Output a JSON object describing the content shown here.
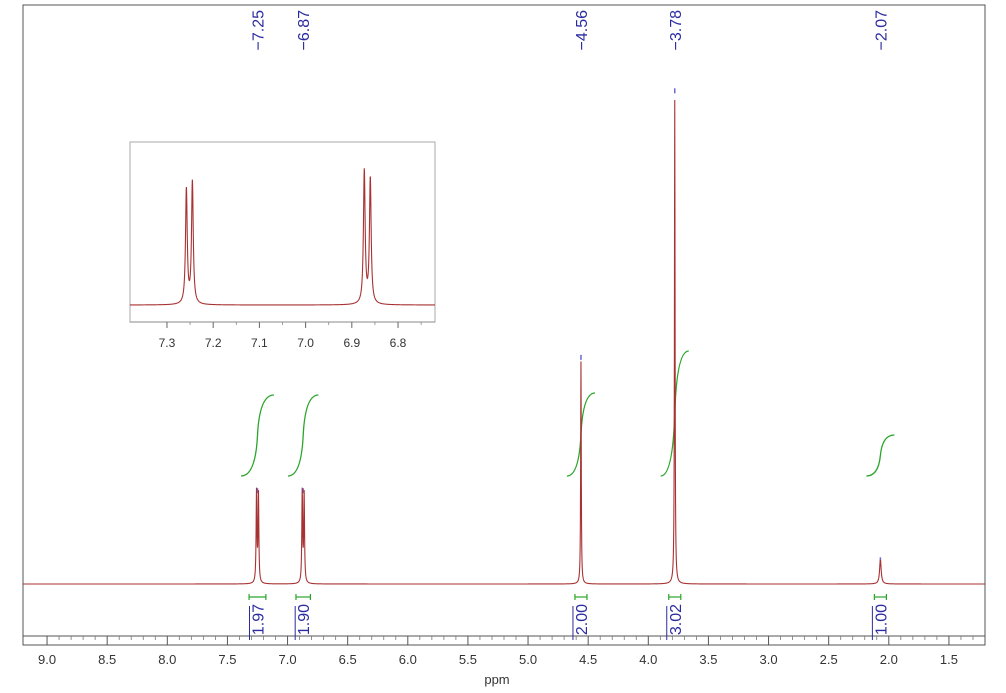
{
  "chart_data": {
    "type": "line",
    "xlabel": "ppm",
    "xlim": [
      9.2,
      1.2
    ],
    "x_reversed": true,
    "x_ticks": [
      "9.0",
      "8.5",
      "8.0",
      "7.5",
      "7.0",
      "6.5",
      "6.0",
      "5.5",
      "5.0",
      "4.5",
      "4.0",
      "3.5",
      "3.0",
      "2.5",
      "2.0",
      "1.5"
    ],
    "peak_labels": [
      "7.25",
      "6.87",
      "4.56",
      "3.78",
      "2.07"
    ],
    "peaks": [
      {
        "ppm": 7.25,
        "intensity": 0.19
      },
      {
        "ppm": 6.87,
        "intensity": 0.19
      },
      {
        "ppm": 4.56,
        "intensity": 0.46
      },
      {
        "ppm": 3.78,
        "intensity": 1.0
      },
      {
        "ppm": 2.07,
        "intensity": 0.05
      }
    ],
    "integrals": [
      {
        "ppm_from": 7.32,
        "ppm_to": 7.18,
        "value": "1.97"
      },
      {
        "ppm_from": 6.93,
        "ppm_to": 6.81,
        "value": "1.90"
      },
      {
        "ppm_from": 4.61,
        "ppm_to": 4.51,
        "value": "2.00"
      },
      {
        "ppm_from": 3.83,
        "ppm_to": 3.73,
        "value": "3.02"
      },
      {
        "ppm_from": 2.12,
        "ppm_to": 2.02,
        "value": "1.00"
      }
    ],
    "inset": {
      "xlim": [
        7.38,
        6.72
      ],
      "x_ticks": [
        "7.3",
        "7.2",
        "7.1",
        "7.0",
        "6.9",
        "6.8"
      ],
      "doublets": [
        {
          "ppm": [
            7.258,
            7.245
          ],
          "intensity": [
            0.74,
            0.79
          ]
        },
        {
          "ppm": [
            6.873,
            6.86
          ],
          "intensity": [
            0.86,
            0.81
          ]
        }
      ]
    },
    "colors": {
      "spectrum": "#a83232",
      "integral": "#2aa52a",
      "label": "#2b2ba0"
    }
  }
}
